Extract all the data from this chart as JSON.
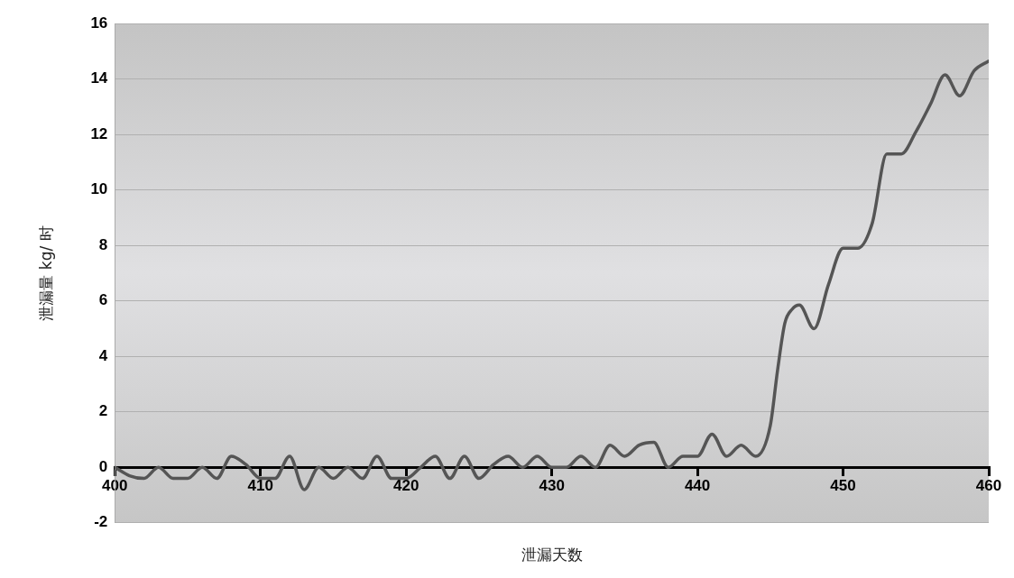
{
  "chart_data": {
    "type": "line",
    "xlabel": "泄漏天数",
    "ylabel": "泄漏量 kg/ 时",
    "x": [
      400,
      401,
      402,
      403,
      404,
      405,
      406,
      407,
      408,
      409,
      410,
      411,
      412,
      413,
      414,
      415,
      416,
      417,
      418,
      419,
      420,
      421,
      422,
      423,
      424,
      425,
      426,
      427,
      428,
      429,
      430,
      431,
      432,
      433,
      434,
      435,
      436,
      437,
      438,
      439,
      440,
      441,
      442,
      443,
      444,
      445,
      445.5,
      446,
      446.5,
      447,
      448,
      449,
      450,
      451,
      452,
      453,
      454,
      455,
      456,
      457,
      458,
      459,
      460
    ],
    "series": [
      {
        "color": "#555555",
        "values": [
          0,
          -0.3,
          -0.4,
          0,
          -0.4,
          -0.4,
          0,
          -0.4,
          0.4,
          0.1,
          -0.4,
          -0.4,
          0.4,
          -0.8,
          0,
          -0.4,
          0,
          -0.4,
          0.4,
          -0.4,
          -0.4,
          0,
          0.4,
          -0.4,
          0.4,
          -0.4,
          0.1,
          0.4,
          0,
          0.4,
          0,
          0,
          0.4,
          0,
          0.8,
          0.4,
          0.8,
          0.9,
          0,
          0.4,
          0.4,
          1.2,
          0.4,
          0.8,
          0.4,
          1.5,
          3.5,
          5.2,
          5.7,
          5.85,
          5,
          6.6,
          7.9,
          7.9,
          8.8,
          11.3,
          11.3,
          12.1,
          13.1,
          14.15,
          13.4,
          14.3,
          14.65
        ]
      }
    ],
    "xlim": [
      400,
      460
    ],
    "xticks": [
      400,
      410,
      420,
      430,
      440,
      450,
      460
    ],
    "ylim": [
      -2,
      16
    ],
    "yticks": [
      -2,
      0,
      2,
      4,
      6,
      8,
      10,
      12,
      14,
      16
    ],
    "grid": "y",
    "legend": false,
    "marker": "none",
    "line_style": "solid"
  }
}
